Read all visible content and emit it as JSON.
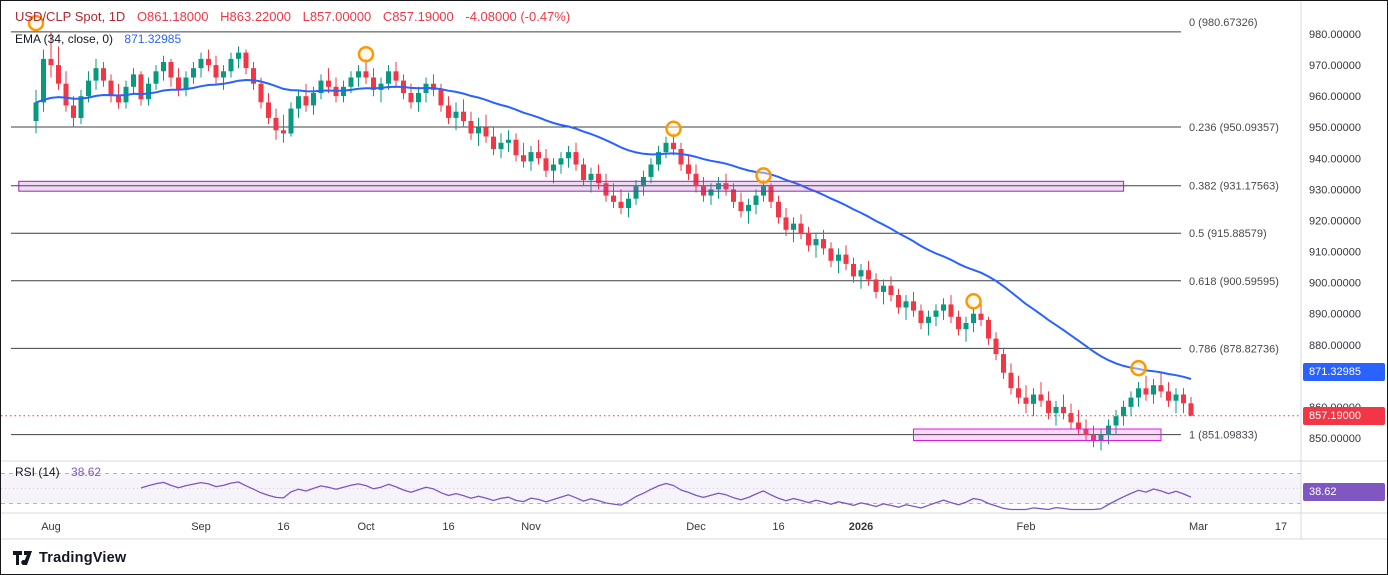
{
  "header": {
    "symbol": "USD/CLP Spot, 1D",
    "ohlc_tokens": [
      "O861.18000",
      "H863.22000",
      "L857.00000",
      "C857.19000",
      "-4.08000 (-0.47%)"
    ],
    "ema_label": "EMA (34, close, 0)",
    "ema_value": "871.32985"
  },
  "rsi_pane": {
    "label": "RSI (14)",
    "value": "38.62"
  },
  "badges": {
    "ema": "871.32985",
    "price": "857.19000",
    "rsi": "38.62"
  },
  "footer": {
    "brand": "TradingView"
  },
  "colors": {
    "up": "#089981",
    "down": "#f23645",
    "ema": "#2962ff",
    "rsi": "#7e57c2",
    "marker": "#ff9800",
    "fib_line": "#3c4043",
    "divider": "#d6d9e0",
    "zone1_fill": "rgba(171,71,188,0.20)",
    "zone1_stroke": "#9c27b0",
    "zone2_fill": "rgba(236,64,226,0.20)",
    "zone2_stroke": "#d81be0"
  },
  "chart_data": {
    "type": "candlestick",
    "symbol": "USD/CLP Spot",
    "interval": "1D",
    "last_price": 857.19,
    "up_color": "#089981",
    "down_color": "#f23645",
    "price_axis_ticks": [
      980,
      970,
      960,
      950,
      940,
      930,
      920,
      910,
      900,
      890,
      880,
      870,
      860,
      850
    ],
    "ylim": [
      847,
      984
    ],
    "indicators": [
      {
        "name": "EMA",
        "period": 34,
        "source": "close",
        "offset": 0,
        "last": 871.32985,
        "color": "#2962ff"
      },
      {
        "name": "RSI",
        "period": 14,
        "last": 38.62,
        "color": "#7e57c2",
        "bands": [
          70,
          30,
          50
        ]
      }
    ],
    "fib_levels": [
      {
        "label": "0 (980.67326)",
        "level": 0,
        "price": 980.67326
      },
      {
        "label": "0.236 (950.09357)",
        "level": 0.236,
        "price": 950.09357
      },
      {
        "label": "0.382 (931.17563)",
        "level": 0.382,
        "price": 931.17563
      },
      {
        "label": "0.5 (915.88579)",
        "level": 0.5,
        "price": 915.88579
      },
      {
        "label": "0.618 (900.59595)",
        "level": 0.618,
        "price": 900.59595
      },
      {
        "label": "0.786 (878.82736)",
        "level": 0.786,
        "price": 878.82736
      },
      {
        "label": "1 (851.09833)",
        "level": 1,
        "price": 851.09833
      }
    ],
    "zones": [
      {
        "i1": -2.3,
        "i2": 145,
        "top": 932.6,
        "bottom": 929.4,
        "fill": "rgba(171,71,188,0.20)",
        "stroke": "#9c27b0"
      },
      {
        "i1": 117,
        "i2": 150,
        "top": 852.9,
        "bottom": 849.2,
        "fill": "rgba(236,64,226,0.20)",
        "stroke": "#d81be0"
      }
    ],
    "markers": [
      {
        "i": 0,
        "p": 983.5
      },
      {
        "i": 44,
        "p": 973.5
      },
      {
        "i": 85,
        "p": 949.5
      },
      {
        "i": 97,
        "p": 934.5
      },
      {
        "i": 125,
        "p": 894
      },
      {
        "i": 147,
        "p": 872.5
      }
    ],
    "time_labels": [
      {
        "t": "Aug",
        "i": 2,
        "b": false
      },
      {
        "t": "Sep",
        "i": 22,
        "b": false
      },
      {
        "t": "16",
        "i": 33,
        "b": false
      },
      {
        "t": "Oct",
        "i": 44,
        "b": false
      },
      {
        "t": "16",
        "i": 55,
        "b": false
      },
      {
        "t": "Nov",
        "i": 66,
        "b": false
      },
      {
        "t": "Dec",
        "i": 88,
        "b": false
      },
      {
        "t": "16",
        "i": 99,
        "b": false
      },
      {
        "t": "2026",
        "i": 110,
        "b": true
      },
      {
        "t": "Feb",
        "i": 132,
        "b": false
      },
      {
        "t": "Mar",
        "i": 155,
        "b": false
      },
      {
        "t": "17",
        "i": 166,
        "b": false
      }
    ],
    "candles_ohlc": [
      [
        952,
        962,
        948,
        958
      ],
      [
        958,
        975,
        955,
        972
      ],
      [
        972,
        980.7,
        966,
        970
      ],
      [
        970,
        976,
        962,
        964
      ],
      [
        964,
        968,
        955,
        957
      ],
      [
        957,
        960,
        950,
        953
      ],
      [
        953,
        962,
        951,
        960
      ],
      [
        960,
        968,
        958,
        965
      ],
      [
        965,
        972,
        962,
        969
      ],
      [
        969,
        971,
        963,
        965
      ],
      [
        965,
        967,
        958,
        960
      ],
      [
        960,
        964,
        956,
        958
      ],
      [
        958,
        965,
        956,
        963
      ],
      [
        963,
        969,
        961,
        967
      ],
      [
        967,
        968,
        957,
        959
      ],
      [
        959,
        966,
        957,
        964
      ],
      [
        964,
        970,
        962,
        968
      ],
      [
        968,
        973,
        965,
        971
      ],
      [
        971,
        972,
        963,
        966
      ],
      [
        966,
        969,
        960,
        962
      ],
      [
        962,
        968,
        960,
        966
      ],
      [
        966,
        971,
        964,
        969
      ],
      [
        969,
        974,
        966,
        972
      ],
      [
        972,
        975,
        968,
        970
      ],
      [
        970,
        973,
        964,
        966
      ],
      [
        966,
        970,
        962,
        968
      ],
      [
        968,
        974,
        966,
        972
      ],
      [
        972,
        976,
        969,
        974
      ],
      [
        974,
        975,
        967,
        969
      ],
      [
        969,
        971,
        962,
        964
      ],
      [
        964,
        966,
        956,
        958
      ],
      [
        958,
        961,
        951,
        953
      ],
      [
        953,
        956,
        946,
        949
      ],
      [
        949,
        954,
        945,
        948
      ],
      [
        948,
        958,
        947,
        956
      ],
      [
        956,
        962,
        953,
        960
      ],
      [
        960,
        964,
        955,
        957
      ],
      [
        957,
        963,
        954,
        961
      ],
      [
        961,
        967,
        959,
        965
      ],
      [
        965,
        969,
        961,
        963
      ],
      [
        963,
        966,
        958,
        960
      ],
      [
        960,
        965,
        958,
        963
      ],
      [
        963,
        968,
        961,
        966
      ],
      [
        966,
        970,
        963,
        968
      ],
      [
        968,
        972,
        964,
        966
      ],
      [
        966,
        969,
        960,
        962
      ],
      [
        962,
        966,
        958,
        964
      ],
      [
        964,
        970,
        962,
        968
      ],
      [
        968,
        971,
        963,
        965
      ],
      [
        965,
        967,
        959,
        961
      ],
      [
        961,
        964,
        956,
        958
      ],
      [
        958,
        963,
        955,
        961
      ],
      [
        961,
        966,
        958,
        964
      ],
      [
        964,
        967,
        960,
        962
      ],
      [
        962,
        964,
        955,
        957
      ],
      [
        957,
        960,
        951,
        953
      ],
      [
        953,
        958,
        949,
        955
      ],
      [
        955,
        959,
        950,
        952
      ],
      [
        952,
        955,
        946,
        948
      ],
      [
        948,
        953,
        944,
        950
      ],
      [
        950,
        954,
        945,
        947
      ],
      [
        947,
        950,
        941,
        943
      ],
      [
        943,
        948,
        940,
        945
      ],
      [
        945,
        949,
        942,
        946
      ],
      [
        946,
        948,
        939,
        941
      ],
      [
        941,
        945,
        937,
        939
      ],
      [
        939,
        944,
        936,
        942
      ],
      [
        942,
        946,
        938,
        940
      ],
      [
        940,
        943,
        934,
        936
      ],
      [
        936,
        940,
        932,
        938
      ],
      [
        938,
        942,
        935,
        940
      ],
      [
        940,
        944,
        937,
        942
      ],
      [
        942,
        945,
        936,
        938
      ],
      [
        938,
        940,
        931,
        933
      ],
      [
        933,
        937,
        929,
        935
      ],
      [
        935,
        938,
        930,
        932
      ],
      [
        932,
        935,
        926,
        928
      ],
      [
        928,
        932,
        924,
        926
      ],
      [
        926,
        930,
        922,
        924
      ],
      [
        924,
        929,
        921,
        927
      ],
      [
        927,
        933,
        925,
        931
      ],
      [
        931,
        936,
        928,
        934
      ],
      [
        934,
        940,
        932,
        938
      ],
      [
        938,
        944,
        936,
        942
      ],
      [
        942,
        947,
        940,
        945
      ],
      [
        945,
        948,
        941,
        943
      ],
      [
        943,
        945,
        936,
        938
      ],
      [
        938,
        941,
        933,
        935
      ],
      [
        935,
        938,
        929,
        931
      ],
      [
        931,
        934,
        926,
        928
      ],
      [
        928,
        932,
        925,
        930
      ],
      [
        930,
        934,
        927,
        932
      ],
      [
        932,
        935,
        928,
        930
      ],
      [
        930,
        932,
        924,
        926
      ],
      [
        926,
        929,
        921,
        923
      ],
      [
        923,
        927,
        919,
        925
      ],
      [
        925,
        930,
        922,
        928
      ],
      [
        928,
        933,
        926,
        931
      ],
      [
        931,
        932,
        924,
        926
      ],
      [
        926,
        928,
        919,
        921
      ],
      [
        921,
        924,
        915,
        917
      ],
      [
        917,
        921,
        913,
        919
      ],
      [
        919,
        922,
        914,
        916
      ],
      [
        916,
        918,
        910,
        912
      ],
      [
        912,
        916,
        908,
        914
      ],
      [
        914,
        917,
        909,
        911
      ],
      [
        911,
        913,
        905,
        907
      ],
      [
        907,
        911,
        903,
        909
      ],
      [
        909,
        912,
        904,
        906
      ],
      [
        906,
        908,
        900,
        902
      ],
      [
        902,
        906,
        898,
        904
      ],
      [
        904,
        907,
        899,
        901
      ],
      [
        901,
        903,
        895,
        897
      ],
      [
        897,
        901,
        893,
        899
      ],
      [
        899,
        902,
        894,
        896
      ],
      [
        896,
        898,
        890,
        892
      ],
      [
        892,
        896,
        888,
        894
      ],
      [
        894,
        897,
        889,
        891
      ],
      [
        891,
        893,
        885,
        887
      ],
      [
        887,
        891,
        883,
        889
      ],
      [
        889,
        893,
        886,
        891
      ],
      [
        891,
        895,
        888,
        893
      ],
      [
        893,
        896,
        887,
        889
      ],
      [
        889,
        891,
        883,
        885
      ],
      [
        885,
        889,
        881,
        887
      ],
      [
        887,
        892,
        884,
        890
      ],
      [
        890,
        894,
        886,
        888
      ],
      [
        888,
        889,
        880,
        882
      ],
      [
        882,
        884,
        875,
        877
      ],
      [
        877,
        879,
        869,
        871
      ],
      [
        871,
        874,
        864,
        866
      ],
      [
        866,
        870,
        861,
        863
      ],
      [
        863,
        867,
        858,
        861
      ],
      [
        861,
        866,
        857,
        864
      ],
      [
        864,
        868,
        860,
        862
      ],
      [
        862,
        865,
        856,
        858
      ],
      [
        858,
        862,
        854,
        860
      ],
      [
        860,
        864,
        856,
        858
      ],
      [
        858,
        861,
        853,
        855
      ],
      [
        855,
        859,
        851,
        853
      ],
      [
        853,
        856,
        849,
        851
      ],
      [
        851,
        854,
        847,
        849
      ],
      [
        849,
        853,
        846,
        851
      ],
      [
        851,
        856,
        848,
        854
      ],
      [
        854,
        859,
        851,
        857
      ],
      [
        857,
        862,
        854,
        860
      ],
      [
        860,
        865,
        857,
        863
      ],
      [
        863,
        868,
        860,
        866
      ],
      [
        866,
        870,
        862,
        864
      ],
      [
        864,
        869,
        861,
        867
      ],
      [
        867,
        871,
        863,
        865
      ],
      [
        865,
        868,
        860,
        862
      ],
      [
        862,
        866,
        858,
        864
      ],
      [
        864,
        866,
        858,
        861.18
      ],
      [
        861.18,
        863.22,
        857,
        857.19
      ]
    ]
  }
}
